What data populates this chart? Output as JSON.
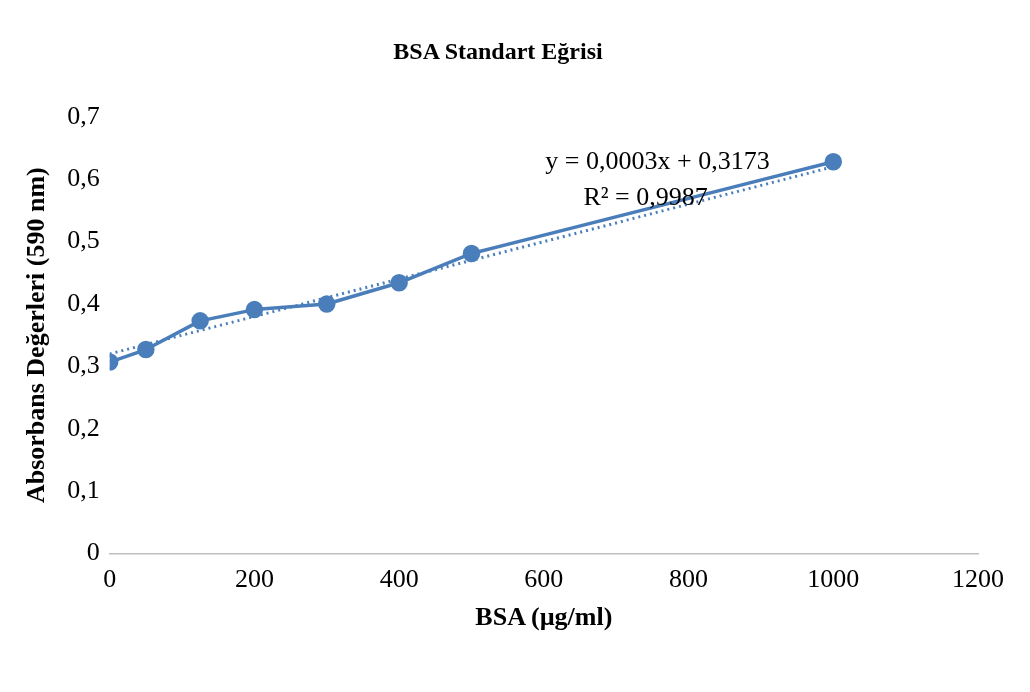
{
  "chart_data": {
    "type": "line",
    "title": "BSA Standart Eğrisi",
    "xlabel": "BSA (µg/ml)",
    "ylabel": "Absorbans Değerleri (590 nm)",
    "series": [
      {
        "color": "#4a7ebb",
        "x": [
          0,
          50,
          125,
          200,
          300,
          400,
          500,
          1000
        ],
        "values": [
          0.307,
          0.327,
          0.373,
          0.391,
          0.4,
          0.434,
          0.481,
          0.628
        ],
        "marker": "circle",
        "line_style": "solid"
      },
      {
        "type": "line",
        "color": "#4a7ebb",
        "x": [
          0,
          1000
        ],
        "values": [
          0.32,
          0.62
        ],
        "marker": "none",
        "line_style": "dotted"
      }
    ],
    "xlim": [
      0,
      1200
    ],
    "xticks": [
      0,
      200,
      400,
      600,
      800,
      1000,
      1200
    ],
    "ylim": [
      0,
      0.7
    ],
    "yticks": [
      0,
      {
        "value": 0.1,
        "label": "0,1"
      },
      {
        "value": 0.2,
        "label": "0,2"
      },
      {
        "value": 0.3,
        "label": "0,3"
      },
      {
        "value": 0.4,
        "label": "0,4"
      },
      {
        "value": 0.5,
        "label": "0,5"
      },
      {
        "value": 0.6,
        "label": "0,6"
      },
      {
        "value": 0.7,
        "label": "0,7"
      }
    ],
    "grid": false,
    "legend": false,
    "annotations": [
      "y = 0,0003x + 0,3173",
      "R² = 0,9987"
    ]
  }
}
